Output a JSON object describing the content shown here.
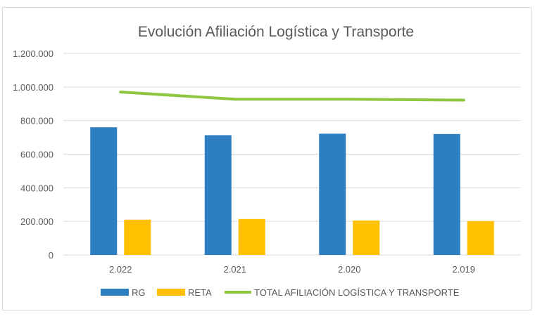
{
  "chart_data": {
    "type": "bar",
    "title": "Evolución Afiliación Logística y Transporte",
    "xlabel": "",
    "ylabel": "",
    "categories": [
      "2.022",
      "2.021",
      "2.020",
      "2.019"
    ],
    "ylim": [
      0,
      1200000
    ],
    "y_ticks": [
      0,
      200000,
      400000,
      600000,
      800000,
      1000000,
      1200000
    ],
    "y_tick_labels": [
      "0",
      "200.000",
      "400.000",
      "600.000",
      "800.000",
      "1.000.000",
      "1.200.000"
    ],
    "grid": true,
    "legend_position": "bottom",
    "series": [
      {
        "name": "RG",
        "kind": "bar",
        "color": "#2e7fc1",
        "values": [
          760000,
          713000,
          722000,
          720000
        ]
      },
      {
        "name": "RETA",
        "kind": "bar",
        "color": "#ffc000",
        "values": [
          210000,
          214000,
          205000,
          202000
        ]
      },
      {
        "name": "TOTAL AFILIACIÓN LOGÍSTICA Y TRANSPORTE",
        "kind": "line",
        "color": "#8dc63f",
        "values": [
          970000,
          927000,
          927000,
          922000
        ]
      }
    ]
  }
}
